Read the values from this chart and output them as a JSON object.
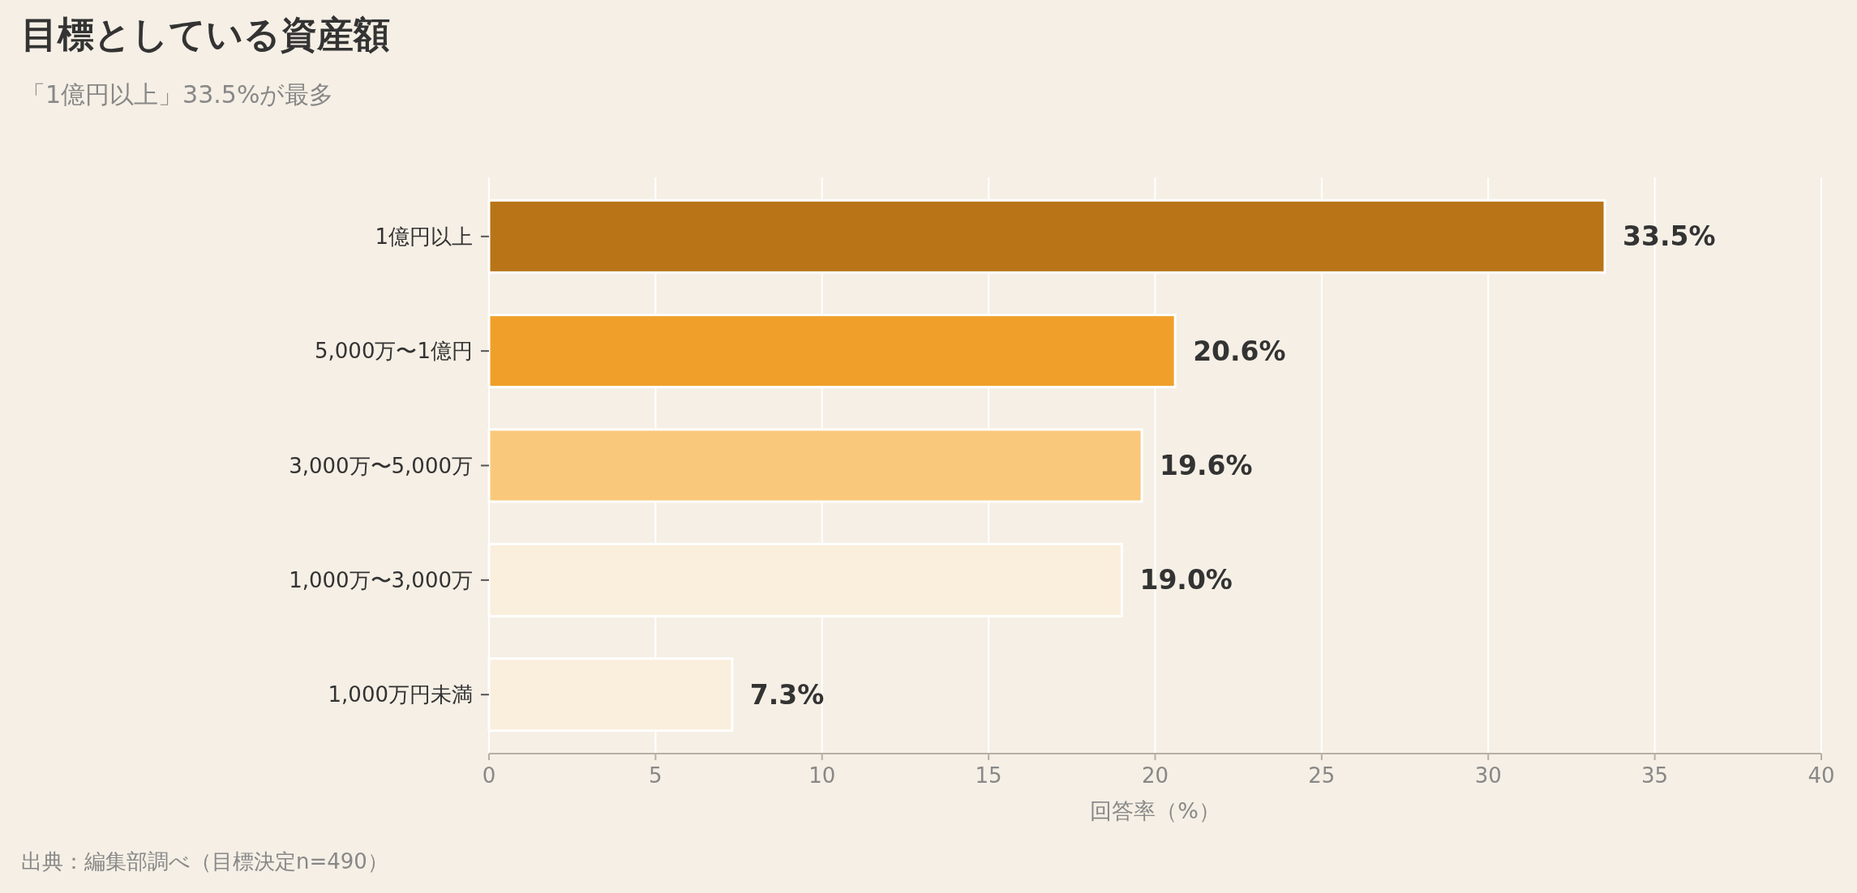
{
  "chart_data": {
    "type": "bar",
    "orientation": "horizontal",
    "title": "目標としている資産額",
    "subtitle": "「1億円以上」33.5%が最多",
    "xlabel": "回答率（%）",
    "annotations": [
      "出典：編集部調べ（目標決定n=490）"
    ],
    "categories": [
      "1億円以上",
      "5,000万〜1億円",
      "3,000万〜5,000万",
      "1,000万〜3,000万",
      "1,000万円未満"
    ],
    "values": [
      33.5,
      20.6,
      19.6,
      19.0,
      7.3
    ],
    "colors": [
      "#b87417",
      "#f0a02a",
      "#f9c87b",
      "#faeedc",
      "#faeedc"
    ],
    "value_labels": [
      "33.5%",
      "20.6%",
      "19.6%",
      "19.0%",
      "7.3%"
    ],
    "xlim": [
      0,
      40
    ],
    "xticks": [
      0,
      5,
      10,
      15,
      20,
      25,
      30,
      35,
      40
    ],
    "grid": "x"
  }
}
